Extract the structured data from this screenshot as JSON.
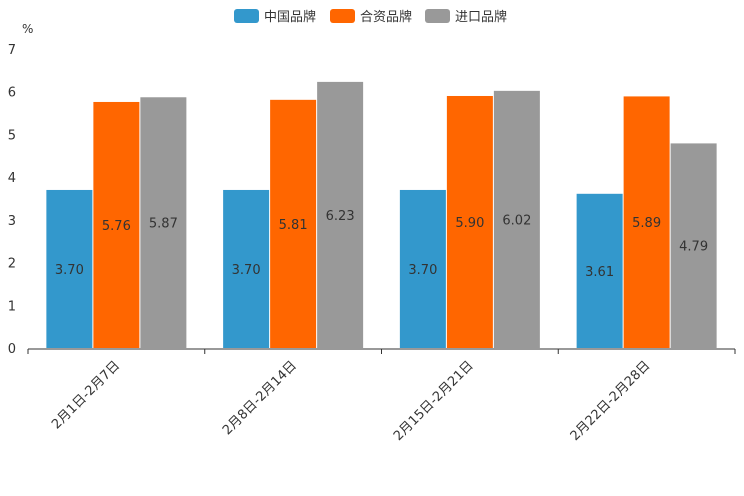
{
  "chart_data": {
    "type": "bar",
    "title": "",
    "ylabel": "%",
    "xlabel": "",
    "ylim": [
      0,
      7
    ],
    "yticks": [
      0,
      1,
      2,
      3,
      4,
      5,
      6,
      7
    ],
    "categories": [
      "2月1日-2月7日",
      "2月8日-2月14日",
      "2月15日-2月21日",
      "2月22日-2月28日"
    ],
    "series": [
      {
        "name": "中国品牌",
        "color": "#3398cc",
        "values": [
          3.7,
          3.7,
          3.7,
          3.61
        ],
        "labels": [
          "3.70",
          "3.70",
          "3.70",
          "3.61"
        ]
      },
      {
        "name": "合资品牌",
        "color": "#ff6600",
        "values": [
          5.76,
          5.81,
          5.9,
          5.89
        ],
        "labels": [
          "5.76",
          "5.81",
          "5.90",
          "5.89"
        ]
      },
      {
        "name": "进口品牌",
        "color": "#999999",
        "values": [
          5.87,
          6.23,
          6.02,
          4.79
        ],
        "labels": [
          "5.87",
          "6.23",
          "6.02",
          "4.79"
        ]
      }
    ],
    "legend": "top-center",
    "grid": false
  }
}
